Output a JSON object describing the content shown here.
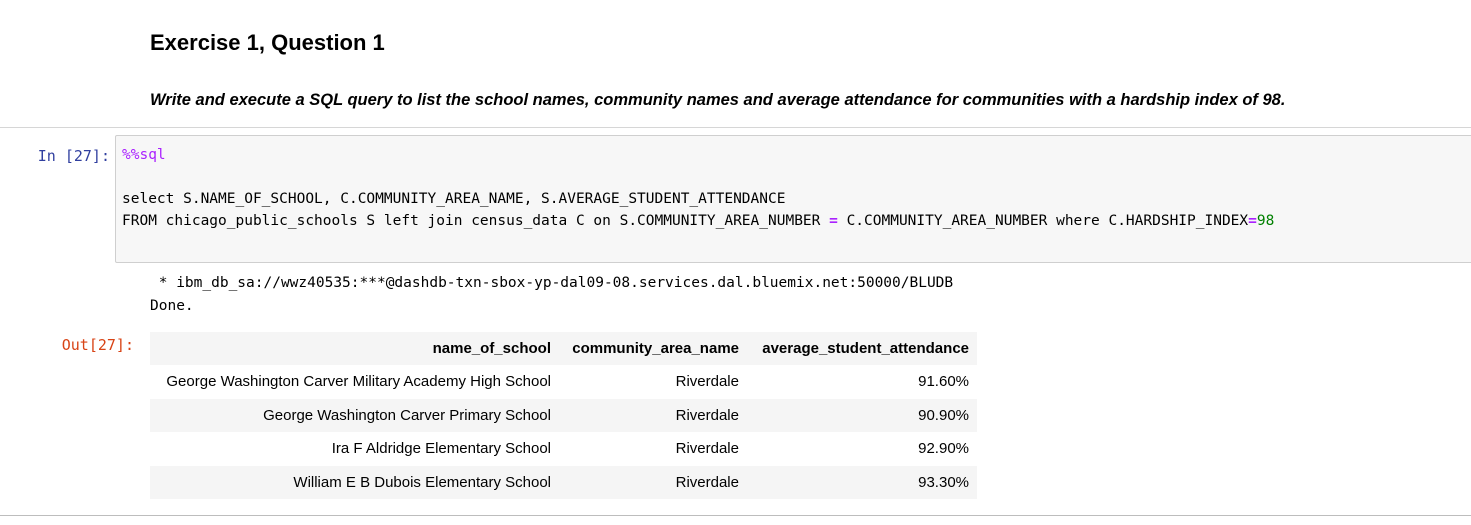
{
  "markdown": {
    "heading": "Exercise 1, Question 1",
    "paragraph": "Write and execute a SQL query to list the school names, community names and average attendance for communities with a hardship index of 98."
  },
  "code_cell": {
    "in_prompt": "In [27]:",
    "magic": "%%sql",
    "line2_select": "select S.NAME_OF_SCHOOL, C.COMMUNITY_AREA_NAME, S.AVERAGE_STUDENT_ATTENDANCE",
    "line3_part1": "FROM chicago_public_schools S left join census_data C on S.COMMUNITY_AREA_NUMBER ",
    "line3_op1": "=",
    "line3_part2": " C.COMMUNITY_AREA_NUMBER where C.HARDSHIP_INDEX",
    "line3_op2": "=",
    "line3_num": "98"
  },
  "output": {
    "connection": " * ibm_db_sa://wwz40535:***@dashdb-txn-sbox-yp-dal09-08.services.dal.bluemix.net:50000/BLUDB",
    "status": "Done.",
    "out_prompt": "Out[27]:"
  },
  "table": {
    "columns": [
      "name_of_school",
      "community_area_name",
      "average_student_attendance"
    ],
    "rows": [
      [
        "George Washington Carver Military Academy High School",
        "Riverdale",
        "91.60%"
      ],
      [
        "George Washington Carver Primary School",
        "Riverdale",
        "90.90%"
      ],
      [
        "Ira F Aldridge Elementary School",
        "Riverdale",
        "92.90%"
      ],
      [
        "William E B Dubois Elementary School",
        "Riverdale",
        "93.30%"
      ]
    ]
  },
  "colors": {
    "in_prompt": "#303f9f",
    "out_prompt": "#d84315",
    "magic": "#aa22ff",
    "number": "#008000",
    "row_stripe": "#f5f5f5"
  }
}
